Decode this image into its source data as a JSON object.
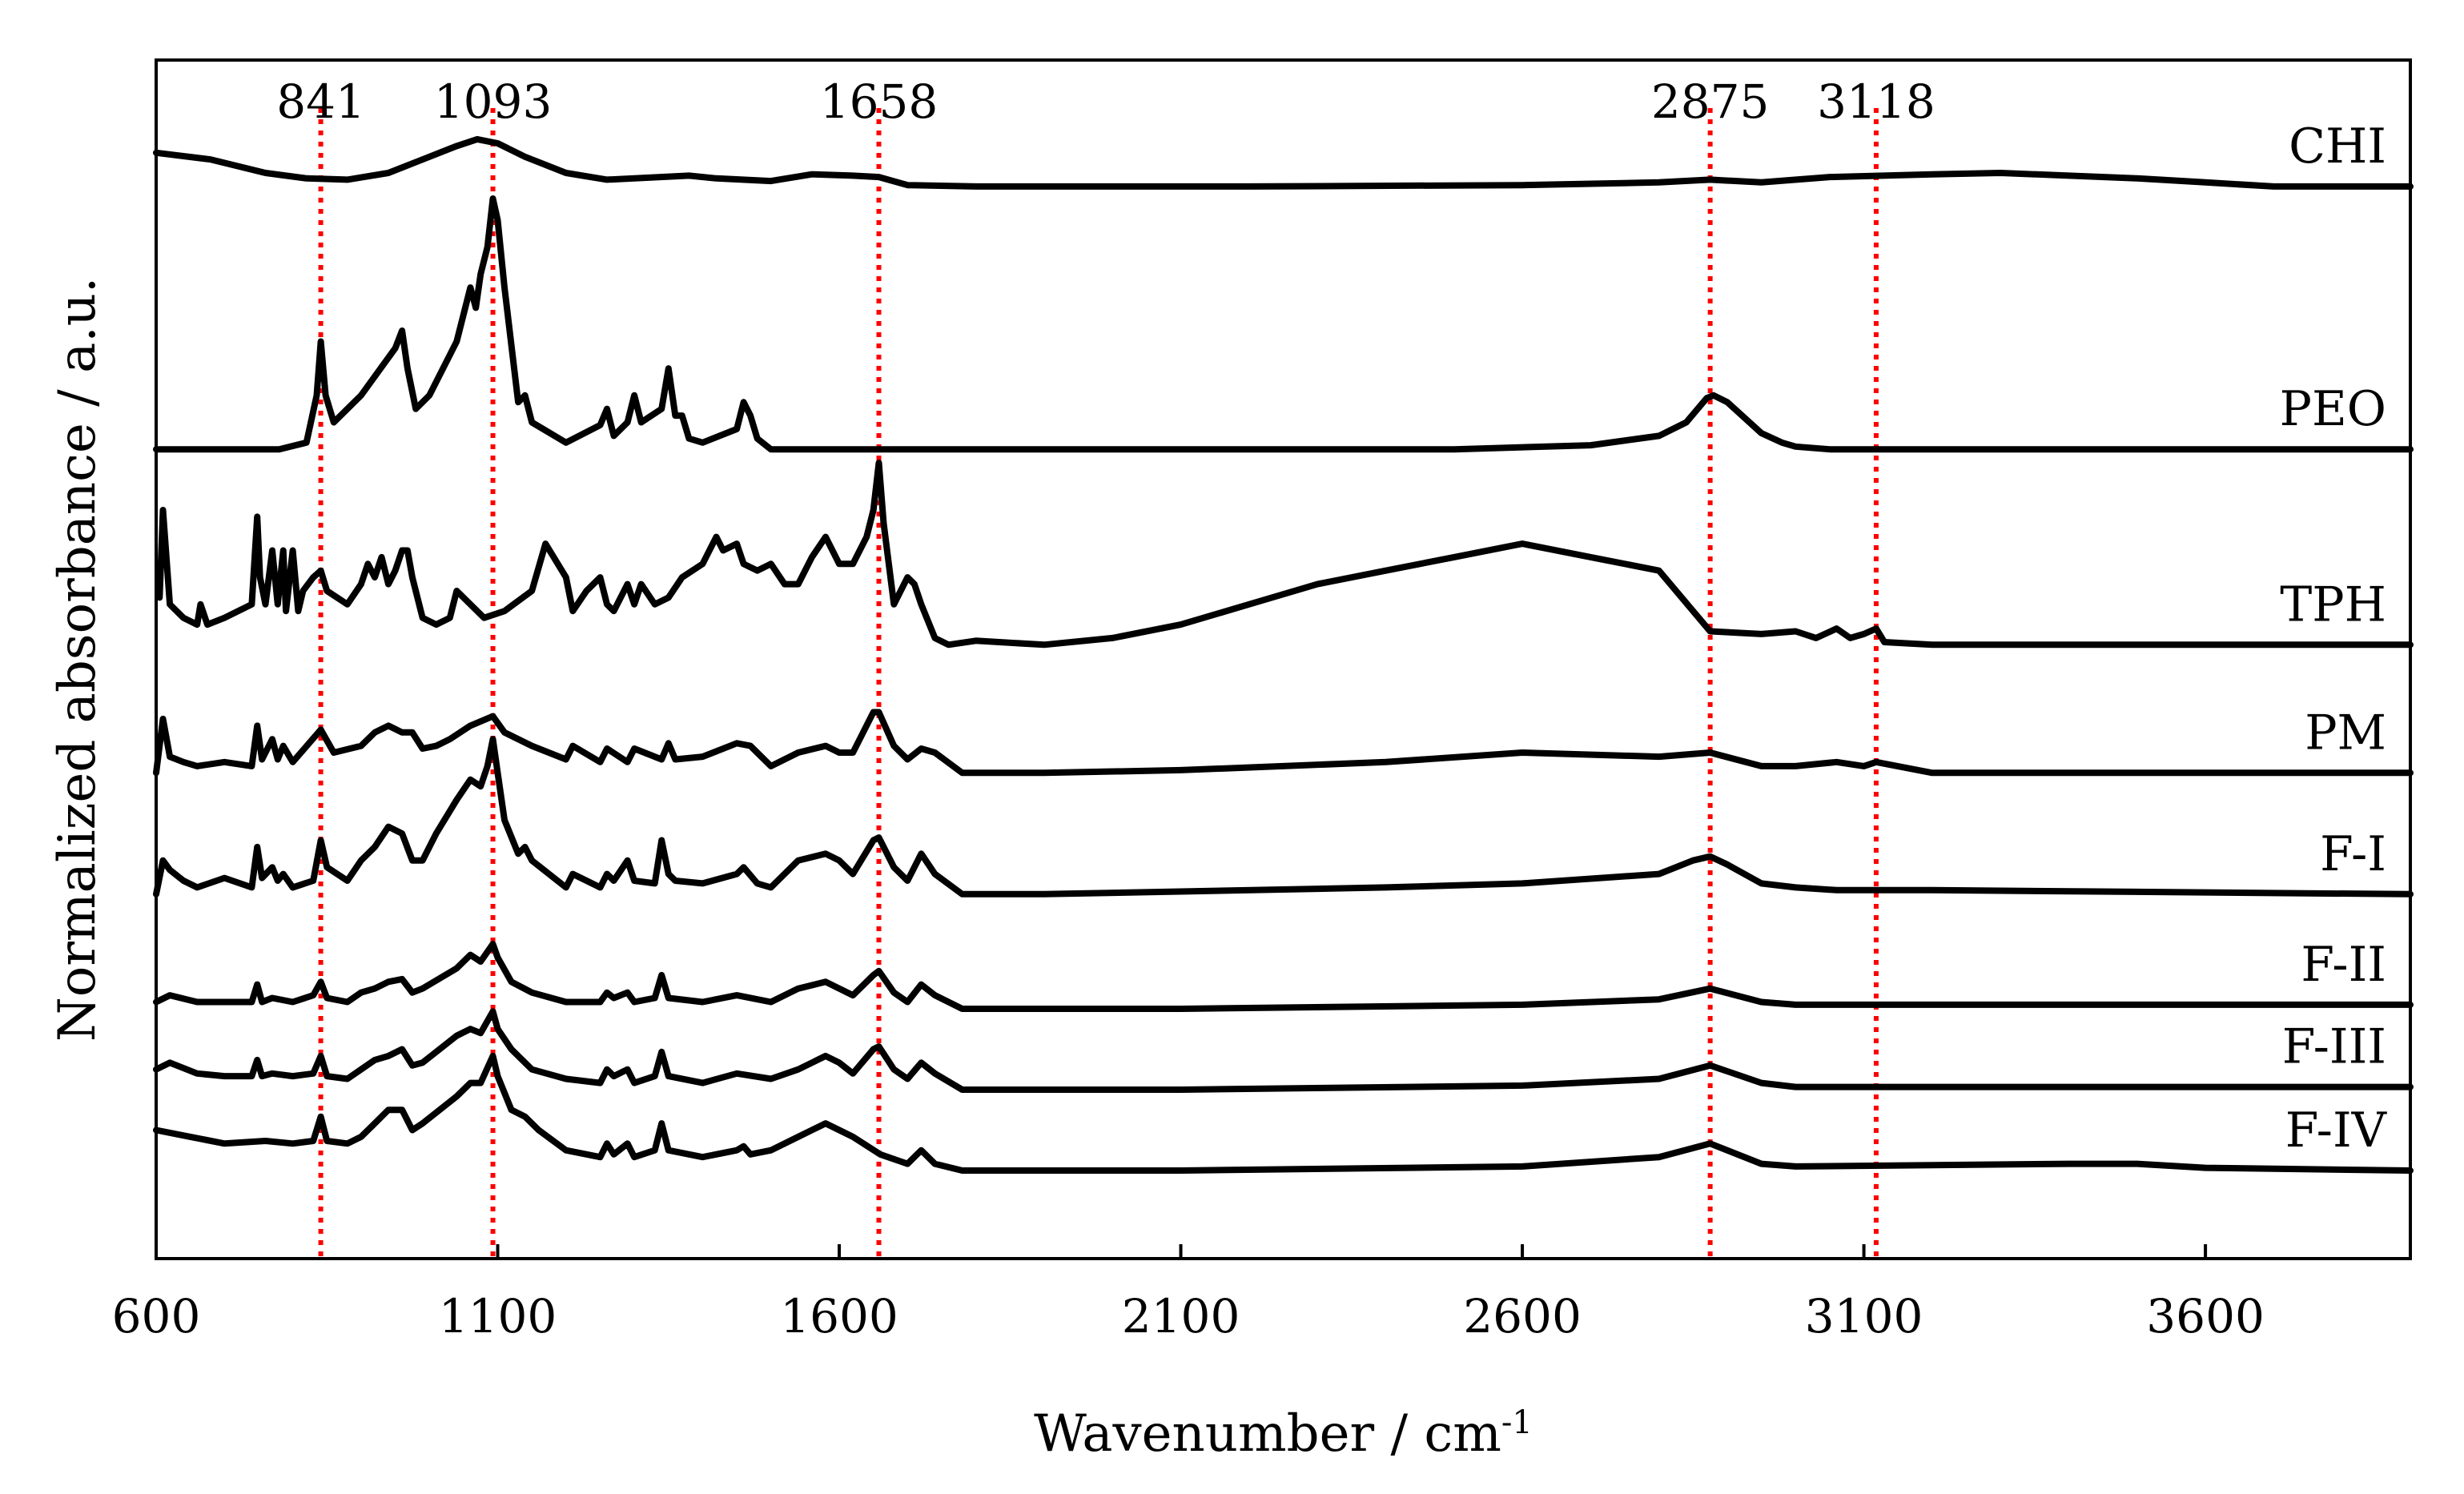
{
  "chart_data": {
    "type": "line",
    "title": "",
    "xlabel": "Wavenumber / cm",
    "xlabel_superscript": "-1",
    "ylabel": "Normalized absorbance / a.u.",
    "xlim": [
      600,
      3900
    ],
    "ylim": [
      0,
      8
    ],
    "x_ticks": [
      600,
      1100,
      1600,
      2100,
      2600,
      3100,
      3600
    ],
    "y_ticks_shown": false,
    "grid": false,
    "legend": "inline right labels",
    "reference_lines": {
      "color": "#ff0000",
      "style": "dotted",
      "positions": [
        841,
        1093,
        1658,
        2875,
        3118
      ],
      "labels": [
        "841",
        "1093",
        "1658",
        "2875",
        "3118"
      ]
    },
    "series": [
      {
        "name": "CHI",
        "offset": 7.3,
        "x": [
          600,
          680,
          760,
          820,
          880,
          940,
          990,
          1040,
          1070,
          1100,
          1140,
          1200,
          1260,
          1380,
          1420,
          1500,
          1560,
          1620,
          1658,
          1700,
          1800,
          2200,
          2600,
          2800,
          2875,
          2950,
          3050,
          3200,
          3300,
          3400,
          3500,
          3600,
          3700,
          3800,
          3900
        ],
        "y": [
          0.25,
          0.2,
          0.1,
          0.06,
          0.05,
          0.1,
          0.2,
          0.3,
          0.35,
          0.32,
          0.22,
          0.1,
          0.05,
          0.08,
          0.06,
          0.04,
          0.09,
          0.08,
          0.07,
          0.01,
          0.0,
          0.0,
          0.01,
          0.03,
          0.05,
          0.03,
          0.07,
          0.09,
          0.1,
          0.08,
          0.06,
          0.03,
          0.0,
          0.0,
          0.0
        ]
      },
      {
        "name": "PEO",
        "offset": 5.35,
        "x": [
          600,
          700,
          780,
          820,
          835,
          841,
          848,
          860,
          900,
          950,
          960,
          968,
          980,
          1000,
          1040,
          1060,
          1068,
          1075,
          1085,
          1093,
          1100,
          1110,
          1130,
          1140,
          1150,
          1200,
          1250,
          1260,
          1270,
          1290,
          1300,
          1310,
          1340,
          1350,
          1360,
          1370,
          1380,
          1400,
          1450,
          1460,
          1470,
          1480,
          1500,
          1700,
          2000,
          2500,
          2700,
          2800,
          2840,
          2870,
          2880,
          2900,
          2950,
          2980,
          3000,
          3050,
          3200,
          3900
        ],
        "y": [
          0.0,
          0.0,
          0.0,
          0.05,
          0.4,
          0.8,
          0.4,
          0.2,
          0.4,
          0.75,
          0.88,
          0.6,
          0.3,
          0.4,
          0.8,
          1.2,
          1.05,
          1.3,
          1.5,
          1.86,
          1.7,
          1.2,
          0.35,
          0.4,
          0.2,
          0.05,
          0.18,
          0.3,
          0.1,
          0.2,
          0.4,
          0.2,
          0.3,
          0.6,
          0.25,
          0.25,
          0.08,
          0.05,
          0.15,
          0.35,
          0.25,
          0.08,
          0.0,
          0.0,
          0.0,
          0.0,
          0.03,
          0.1,
          0.2,
          0.38,
          0.4,
          0.35,
          0.12,
          0.05,
          0.02,
          0.0,
          0.0,
          0.0
        ]
      },
      {
        "name": "TPH",
        "offset": 3.9,
        "x": [
          605,
          610,
          620,
          640,
          660,
          665,
          675,
          700,
          740,
          748,
          752,
          760,
          770,
          778,
          786,
          790,
          800,
          808,
          815,
          830,
          841,
          850,
          880,
          900,
          910,
          920,
          930,
          940,
          950,
          960,
          968,
          975,
          990,
          1010,
          1030,
          1040,
          1060,
          1080,
          1110,
          1150,
          1170,
          1200,
          1210,
          1230,
          1250,
          1260,
          1270,
          1290,
          1300,
          1310,
          1330,
          1350,
          1370,
          1400,
          1420,
          1430,
          1450,
          1460,
          1480,
          1500,
          1520,
          1540,
          1560,
          1580,
          1600,
          1620,
          1640,
          1650,
          1658,
          1665,
          1680,
          1700,
          1710,
          1720,
          1740,
          1760,
          1800,
          1900,
          2000,
          2100,
          2200,
          2300,
          2400,
          2500,
          2600,
          2700,
          2800,
          2875,
          2950,
          3000,
          3030,
          3060,
          3080,
          3100,
          3118,
          3130,
          3200,
          3900
        ],
        "y": [
          0.35,
          1.0,
          0.3,
          0.2,
          0.15,
          0.3,
          0.15,
          0.2,
          0.3,
          0.95,
          0.5,
          0.3,
          0.7,
          0.3,
          0.7,
          0.25,
          0.7,
          0.25,
          0.4,
          0.5,
          0.55,
          0.4,
          0.3,
          0.45,
          0.6,
          0.5,
          0.65,
          0.45,
          0.55,
          0.7,
          0.7,
          0.5,
          0.2,
          0.15,
          0.2,
          0.4,
          0.3,
          0.2,
          0.25,
          0.4,
          0.75,
          0.5,
          0.25,
          0.4,
          0.5,
          0.3,
          0.25,
          0.45,
          0.3,
          0.45,
          0.3,
          0.35,
          0.5,
          0.6,
          0.8,
          0.7,
          0.75,
          0.6,
          0.55,
          0.6,
          0.45,
          0.45,
          0.65,
          0.8,
          0.6,
          0.6,
          0.8,
          1.0,
          1.35,
          0.9,
          0.3,
          0.5,
          0.45,
          0.3,
          0.05,
          0.0,
          0.03,
          0.0,
          0.05,
          0.15,
          0.3,
          0.45,
          0.55,
          0.65,
          0.75,
          0.65,
          0.55,
          0.1,
          0.08,
          0.1,
          0.05,
          0.12,
          0.05,
          0.08,
          0.12,
          0.02,
          0.0,
          0.0
        ]
      },
      {
        "name": "PM",
        "offset": 2.95,
        "x": [
          600,
          610,
          620,
          640,
          660,
          700,
          740,
          748,
          755,
          770,
          778,
          786,
          800,
          841,
          860,
          900,
          920,
          940,
          960,
          975,
          990,
          1010,
          1030,
          1060,
          1093,
          1110,
          1150,
          1200,
          1210,
          1250,
          1260,
          1290,
          1300,
          1340,
          1350,
          1360,
          1400,
          1450,
          1470,
          1500,
          1540,
          1580,
          1600,
          1620,
          1650,
          1658,
          1680,
          1700,
          1720,
          1740,
          1780,
          1900,
          2100,
          2400,
          2600,
          2800,
          2875,
          2950,
          3000,
          3060,
          3100,
          3118,
          3200,
          3900
        ],
        "y": [
          0.0,
          0.4,
          0.12,
          0.08,
          0.05,
          0.08,
          0.05,
          0.35,
          0.1,
          0.25,
          0.1,
          0.2,
          0.08,
          0.32,
          0.15,
          0.2,
          0.3,
          0.35,
          0.3,
          0.3,
          0.18,
          0.2,
          0.25,
          0.35,
          0.42,
          0.3,
          0.2,
          0.1,
          0.2,
          0.08,
          0.18,
          0.08,
          0.18,
          0.1,
          0.22,
          0.1,
          0.12,
          0.22,
          0.2,
          0.05,
          0.15,
          0.2,
          0.15,
          0.15,
          0.45,
          0.45,
          0.2,
          0.1,
          0.18,
          0.15,
          0.0,
          0.0,
          0.02,
          0.08,
          0.15,
          0.12,
          0.15,
          0.05,
          0.05,
          0.08,
          0.05,
          0.08,
          0.0,
          0.0
        ]
      },
      {
        "name": "F-I",
        "offset": 2.05,
        "x": [
          600,
          610,
          620,
          640,
          660,
          700,
          740,
          748,
          755,
          770,
          778,
          786,
          800,
          830,
          841,
          850,
          880,
          900,
          920,
          940,
          960,
          975,
          990,
          1010,
          1040,
          1060,
          1075,
          1085,
          1093,
          1100,
          1110,
          1130,
          1140,
          1150,
          1200,
          1210,
          1250,
          1260,
          1270,
          1290,
          1300,
          1330,
          1340,
          1350,
          1360,
          1400,
          1450,
          1460,
          1480,
          1500,
          1540,
          1580,
          1600,
          1620,
          1650,
          1658,
          1680,
          1700,
          1720,
          1740,
          1780,
          1900,
          2100,
          2400,
          2600,
          2800,
          2850,
          2875,
          2900,
          2950,
          3000,
          3060,
          3118,
          3200,
          3900
        ],
        "y": [
          0.0,
          0.25,
          0.18,
          0.1,
          0.05,
          0.12,
          0.05,
          0.35,
          0.12,
          0.2,
          0.1,
          0.15,
          0.05,
          0.1,
          0.4,
          0.2,
          0.1,
          0.25,
          0.35,
          0.5,
          0.45,
          0.25,
          0.25,
          0.45,
          0.7,
          0.85,
          0.8,
          0.95,
          1.15,
          0.9,
          0.55,
          0.3,
          0.35,
          0.25,
          0.05,
          0.15,
          0.05,
          0.15,
          0.1,
          0.25,
          0.1,
          0.08,
          0.4,
          0.15,
          0.1,
          0.08,
          0.15,
          0.2,
          0.08,
          0.05,
          0.25,
          0.3,
          0.25,
          0.15,
          0.4,
          0.42,
          0.2,
          0.1,
          0.3,
          0.15,
          0.0,
          0.0,
          0.02,
          0.05,
          0.08,
          0.15,
          0.25,
          0.28,
          0.22,
          0.08,
          0.05,
          0.03,
          0.03,
          0.03,
          0.0
        ]
      },
      {
        "name": "F-II",
        "offset": 1.2,
        "x": [
          600,
          620,
          660,
          700,
          740,
          748,
          755,
          770,
          800,
          830,
          841,
          850,
          880,
          900,
          920,
          940,
          960,
          975,
          990,
          1040,
          1060,
          1075,
          1093,
          1100,
          1120,
          1150,
          1200,
          1250,
          1260,
          1270,
          1290,
          1300,
          1330,
          1340,
          1350,
          1400,
          1450,
          1500,
          1540,
          1580,
          1600,
          1620,
          1650,
          1658,
          1680,
          1700,
          1720,
          1740,
          1780,
          2100,
          2600,
          2800,
          2875,
          2950,
          3000,
          3900
        ],
        "y": [
          0.05,
          0.1,
          0.05,
          0.05,
          0.05,
          0.18,
          0.05,
          0.08,
          0.05,
          0.1,
          0.2,
          0.08,
          0.05,
          0.12,
          0.15,
          0.2,
          0.22,
          0.12,
          0.15,
          0.3,
          0.4,
          0.35,
          0.48,
          0.38,
          0.2,
          0.12,
          0.05,
          0.05,
          0.12,
          0.08,
          0.12,
          0.05,
          0.08,
          0.25,
          0.08,
          0.05,
          0.1,
          0.05,
          0.15,
          0.2,
          0.15,
          0.1,
          0.25,
          0.28,
          0.12,
          0.05,
          0.18,
          0.1,
          0.0,
          0.0,
          0.03,
          0.07,
          0.15,
          0.05,
          0.03,
          0.03
        ]
      },
      {
        "name": "F-III",
        "offset": 0.6,
        "x": [
          600,
          620,
          660,
          700,
          740,
          748,
          755,
          770,
          800,
          830,
          841,
          850,
          880,
          900,
          920,
          940,
          960,
          975,
          990,
          1040,
          1060,
          1075,
          1093,
          1100,
          1120,
          1150,
          1200,
          1250,
          1260,
          1270,
          1290,
          1300,
          1330,
          1340,
          1350,
          1400,
          1450,
          1500,
          1540,
          1580,
          1600,
          1620,
          1650,
          1658,
          1680,
          1700,
          1720,
          1740,
          1780,
          2100,
          2600,
          2800,
          2875,
          2950,
          3000,
          3900
        ],
        "y": [
          0.15,
          0.2,
          0.12,
          0.1,
          0.1,
          0.22,
          0.1,
          0.12,
          0.1,
          0.12,
          0.25,
          0.1,
          0.08,
          0.15,
          0.22,
          0.25,
          0.3,
          0.18,
          0.2,
          0.4,
          0.45,
          0.42,
          0.58,
          0.45,
          0.3,
          0.15,
          0.08,
          0.05,
          0.15,
          0.1,
          0.15,
          0.05,
          0.1,
          0.28,
          0.1,
          0.05,
          0.12,
          0.08,
          0.15,
          0.25,
          0.2,
          0.12,
          0.3,
          0.32,
          0.15,
          0.08,
          0.2,
          0.12,
          0.0,
          0.0,
          0.03,
          0.08,
          0.18,
          0.05,
          0.02,
          0.02
        ]
      },
      {
        "name": "F-IV",
        "offset": 0.0,
        "x": [
          600,
          650,
          700,
          760,
          800,
          830,
          841,
          850,
          880,
          900,
          920,
          940,
          960,
          975,
          990,
          1040,
          1060,
          1075,
          1093,
          1100,
          1120,
          1140,
          1160,
          1200,
          1250,
          1260,
          1270,
          1290,
          1300,
          1330,
          1340,
          1350,
          1400,
          1450,
          1460,
          1470,
          1500,
          1540,
          1580,
          1620,
          1660,
          1700,
          1720,
          1740,
          1780,
          2100,
          2600,
          2800,
          2875,
          2950,
          3000,
          3400,
          3500,
          3600,
          3900
        ],
        "y": [
          0.3,
          0.25,
          0.2,
          0.22,
          0.2,
          0.22,
          0.4,
          0.22,
          0.2,
          0.25,
          0.35,
          0.45,
          0.45,
          0.3,
          0.35,
          0.55,
          0.65,
          0.65,
          0.85,
          0.7,
          0.45,
          0.4,
          0.3,
          0.15,
          0.1,
          0.2,
          0.12,
          0.2,
          0.1,
          0.15,
          0.35,
          0.15,
          0.1,
          0.15,
          0.18,
          0.12,
          0.15,
          0.25,
          0.35,
          0.25,
          0.12,
          0.05,
          0.15,
          0.05,
          0.0,
          0.0,
          0.03,
          0.1,
          0.2,
          0.05,
          0.03,
          0.05,
          0.05,
          0.02,
          0.0
        ]
      }
    ]
  }
}
